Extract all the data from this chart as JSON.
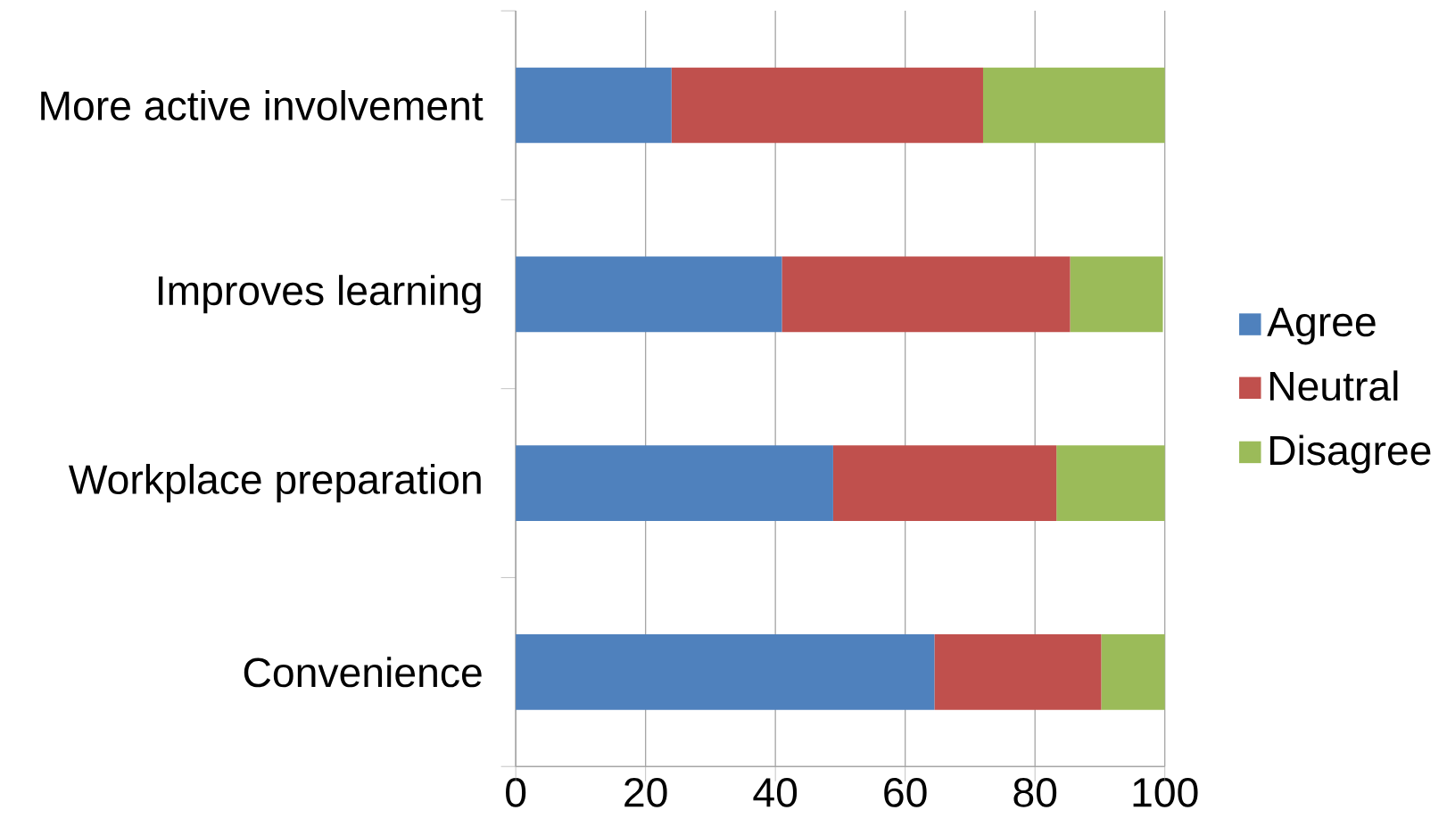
{
  "chart_data": {
    "type": "bar",
    "orientation": "horizontal",
    "stacked": true,
    "categories": [
      "More active involvement",
      "Improves learning",
      "Workplace preparation",
      "Convenience"
    ],
    "series": [
      {
        "name": "Agree",
        "color": "#4f81bd",
        "values": [
          24,
          41,
          48.9,
          64.5
        ]
      },
      {
        "name": "Neutral",
        "color": "#c0504d",
        "values": [
          48,
          44.4,
          34.4,
          25.7
        ]
      },
      {
        "name": "Disagree",
        "color": "#9bbb59",
        "values": [
          28,
          14.3,
          16.7,
          9.8
        ]
      }
    ],
    "xlim": [
      0,
      100
    ],
    "xticks": [
      0,
      20,
      40,
      60,
      80,
      100
    ],
    "grid": "x",
    "legend": "right"
  }
}
